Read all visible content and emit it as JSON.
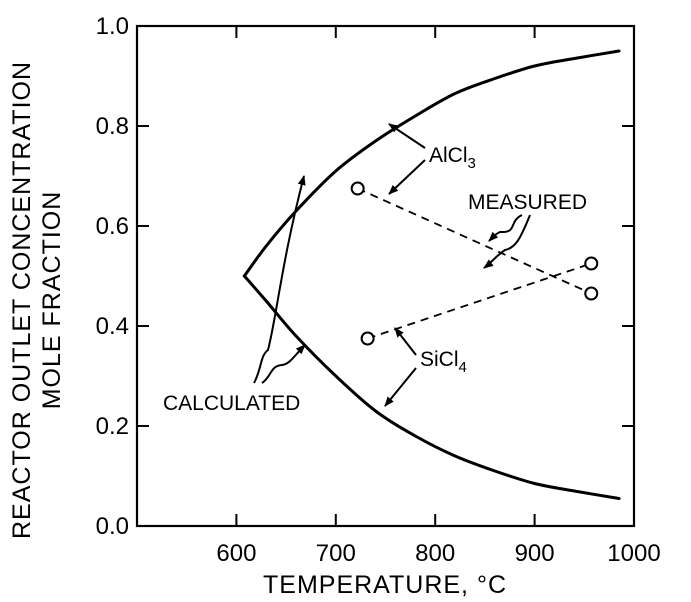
{
  "chart_data": {
    "type": "line",
    "title": "",
    "xlabel": "TEMPERATURE, °C",
    "ylabel_line1": "REACTOR OUTLET CONCENTRATION",
    "ylabel_line2": "MOLE FRACTION",
    "xlim": [
      500,
      1000
    ],
    "ylim": [
      0.0,
      1.0
    ],
    "x_ticks": [
      600,
      700,
      800,
      900,
      1000
    ],
    "x_tick_labels": [
      "600",
      "700",
      "800",
      "900",
      "1000"
    ],
    "y_ticks": [
      0.0,
      0.2,
      0.4,
      0.6,
      0.8,
      1.0
    ],
    "y_tick_labels": [
      "0.0",
      "0.2",
      "0.4",
      "0.6",
      "0.8",
      "1.0"
    ],
    "grid": false,
    "series": [
      {
        "name": "AlCl3",
        "kind": "calculated",
        "style": "solid",
        "x": [
          608,
          630,
          660,
          700,
          740,
          780,
          820,
          860,
          900,
          940,
          985
        ],
        "y": [
          0.5,
          0.56,
          0.63,
          0.71,
          0.77,
          0.82,
          0.865,
          0.895,
          0.92,
          0.935,
          0.95
        ]
      },
      {
        "name": "SiCl4",
        "kind": "calculated",
        "style": "solid",
        "x": [
          608,
          630,
          660,
          700,
          740,
          780,
          820,
          860,
          900,
          940,
          985
        ],
        "y": [
          0.5,
          0.45,
          0.38,
          0.3,
          0.23,
          0.18,
          0.14,
          0.11,
          0.085,
          0.07,
          0.055
        ]
      },
      {
        "name": "AlCl3",
        "kind": "measured",
        "style": "dashed",
        "x": [
          722,
          957
        ],
        "y": [
          0.675,
          0.465
        ]
      },
      {
        "name": "SiCl4",
        "kind": "measured",
        "style": "dashed",
        "x": [
          732,
          957
        ],
        "y": [
          0.375,
          0.525
        ]
      }
    ],
    "annotations": {
      "alcl3_main": "AlCl",
      "alcl3_sub": "3",
      "sicl4_main": "SiCl",
      "sicl4_sub": "4",
      "measured": "MEASURED",
      "calculated": "CALCULATED"
    }
  }
}
